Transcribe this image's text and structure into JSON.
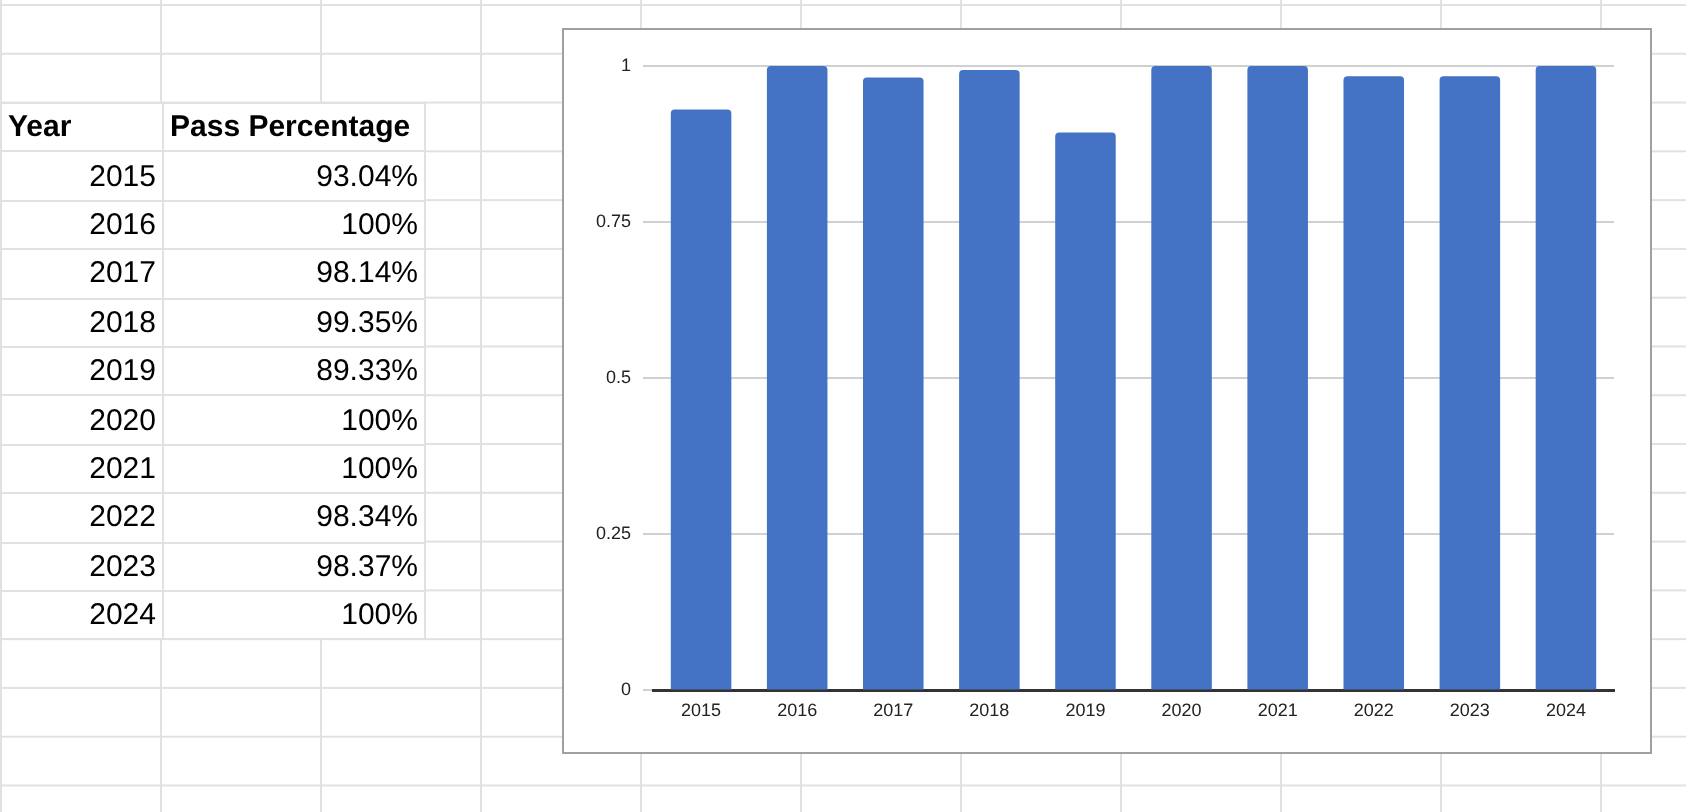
{
  "chart_data": {
    "type": "bar",
    "annotations": [
      "Year",
      "Pass Percentage",
      "93.04%",
      "100%",
      "98.14%",
      "99.35%",
      "89.33%",
      "100%",
      "100%",
      "98.34%",
      "98.37%",
      "100%"
    ],
    "categories": [
      "2015",
      "2016",
      "2017",
      "2018",
      "2019",
      "2020",
      "2021",
      "2022",
      "2023",
      "2024"
    ],
    "values": [
      0.9304,
      1,
      0.9814,
      0.9935,
      0.8933,
      1,
      1,
      0.9834,
      0.9837,
      1
    ],
    "color": "#4472c4",
    "ylim": [
      0,
      1
    ],
    "yticks": [
      0,
      0.25,
      0.5,
      0.75,
      1
    ],
    "grid": "y",
    "legend": false
  }
}
